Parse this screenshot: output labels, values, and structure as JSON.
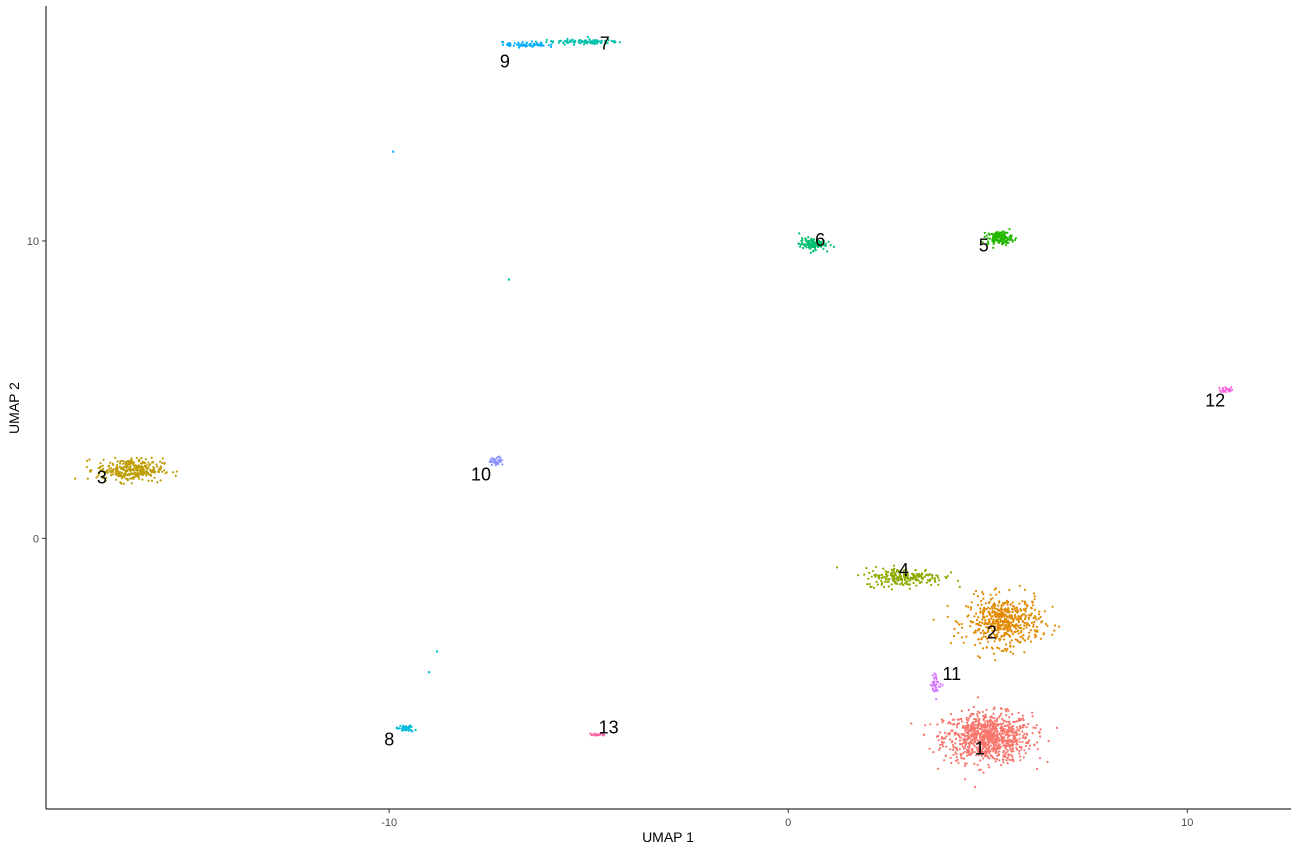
{
  "chart_data": {
    "type": "scatter",
    "title": "",
    "xlabel": "UMAP 1",
    "ylabel": "UMAP 2",
    "xlim": [
      -18.6,
      12.6
    ],
    "ylim": [
      -9.1,
      17.9
    ],
    "x_ticks": [
      -10,
      0,
      10
    ],
    "x_tick_labels": [
      "-10",
      "0",
      "10"
    ],
    "y_ticks": [
      0,
      10
    ],
    "y_tick_labels": [
      "0",
      "10"
    ],
    "grid": false,
    "legend": "none",
    "clusters": [
      {
        "label": "1",
        "color": "#F8766D",
        "center": [
          5.0,
          -6.7
        ],
        "spread": [
          1.0,
          0.75
        ],
        "points": 900
      },
      {
        "label": "2",
        "color": "#E18A00",
        "center": [
          5.4,
          -2.8
        ],
        "spread": [
          0.85,
          0.75
        ],
        "points": 520
      },
      {
        "label": "3",
        "color": "#BE9C00",
        "center": [
          -16.5,
          2.3
        ],
        "spread": [
          0.75,
          0.35
        ],
        "points": 300
      },
      {
        "label": "4",
        "color": "#8CAB00",
        "center": [
          2.9,
          -1.3
        ],
        "spread": [
          0.9,
          0.28
        ],
        "points": 230
      },
      {
        "label": "5",
        "color": "#24B700",
        "center": [
          5.3,
          10.1
        ],
        "spread": [
          0.28,
          0.2
        ],
        "points": 140
      },
      {
        "label": "6",
        "color": "#00BE70",
        "center": [
          0.6,
          9.9
        ],
        "spread": [
          0.3,
          0.18
        ],
        "points": 110
      },
      {
        "label": "7",
        "color": "#00C1AB",
        "center": [
          -5.2,
          16.7
        ],
        "spread": [
          0.9,
          0.08
        ],
        "points": 90
      },
      {
        "label": "8",
        "color": "#00BBDA",
        "center": [
          -9.6,
          -6.4
        ],
        "spread": [
          0.2,
          0.1
        ],
        "points": 40
      },
      {
        "label": "9",
        "color": "#00ACFC",
        "center": [
          -6.6,
          16.6
        ],
        "spread": [
          0.5,
          0.08
        ],
        "points": 70
      },
      {
        "label": "10",
        "color": "#8B93FF",
        "center": [
          -7.3,
          2.6
        ],
        "spread": [
          0.15,
          0.12
        ],
        "points": 45
      },
      {
        "label": "11",
        "color": "#D575FE",
        "center": [
          3.7,
          -4.9
        ],
        "spread": [
          0.12,
          0.3
        ],
        "points": 40
      },
      {
        "label": "12",
        "color": "#F962DD",
        "center": [
          11.0,
          5.0
        ],
        "spread": [
          0.18,
          0.08
        ],
        "points": 25
      },
      {
        "label": "13",
        "color": "#FF65AC",
        "center": [
          -4.8,
          -6.6
        ],
        "spread": [
          0.2,
          0.05
        ],
        "points": 20
      }
    ],
    "label_positions": [
      {
        "label": "1",
        "x": 4.8,
        "y": -7.1
      },
      {
        "label": "2",
        "x": 5.1,
        "y": -3.2
      },
      {
        "label": "3",
        "x": -17.2,
        "y": 2.0
      },
      {
        "label": "4",
        "x": 2.9,
        "y": -1.1
      },
      {
        "label": "5",
        "x": 4.9,
        "y": 9.8
      },
      {
        "label": "6",
        "x": 0.8,
        "y": 10.0
      },
      {
        "label": "7",
        "x": -4.6,
        "y": 16.6
      },
      {
        "label": "8",
        "x": -10.0,
        "y": -6.8
      },
      {
        "label": "9",
        "x": -7.1,
        "y": 16.0
      },
      {
        "label": "10",
        "x": -7.7,
        "y": 2.1
      },
      {
        "label": "11",
        "x": 4.1,
        "y": -4.6
      },
      {
        "label": "12",
        "x": 10.7,
        "y": 4.6
      },
      {
        "label": "13",
        "x": -4.5,
        "y": -6.4
      }
    ],
    "outliers": [
      {
        "x": -9.9,
        "y": 13.0,
        "color": "#00ACFC"
      },
      {
        "x": -7.0,
        "y": 8.7,
        "color": "#00C1AB"
      },
      {
        "x": -8.8,
        "y": -3.8,
        "color": "#00BBDA"
      },
      {
        "x": -9.0,
        "y": -4.5,
        "color": "#00BBDA"
      }
    ]
  }
}
